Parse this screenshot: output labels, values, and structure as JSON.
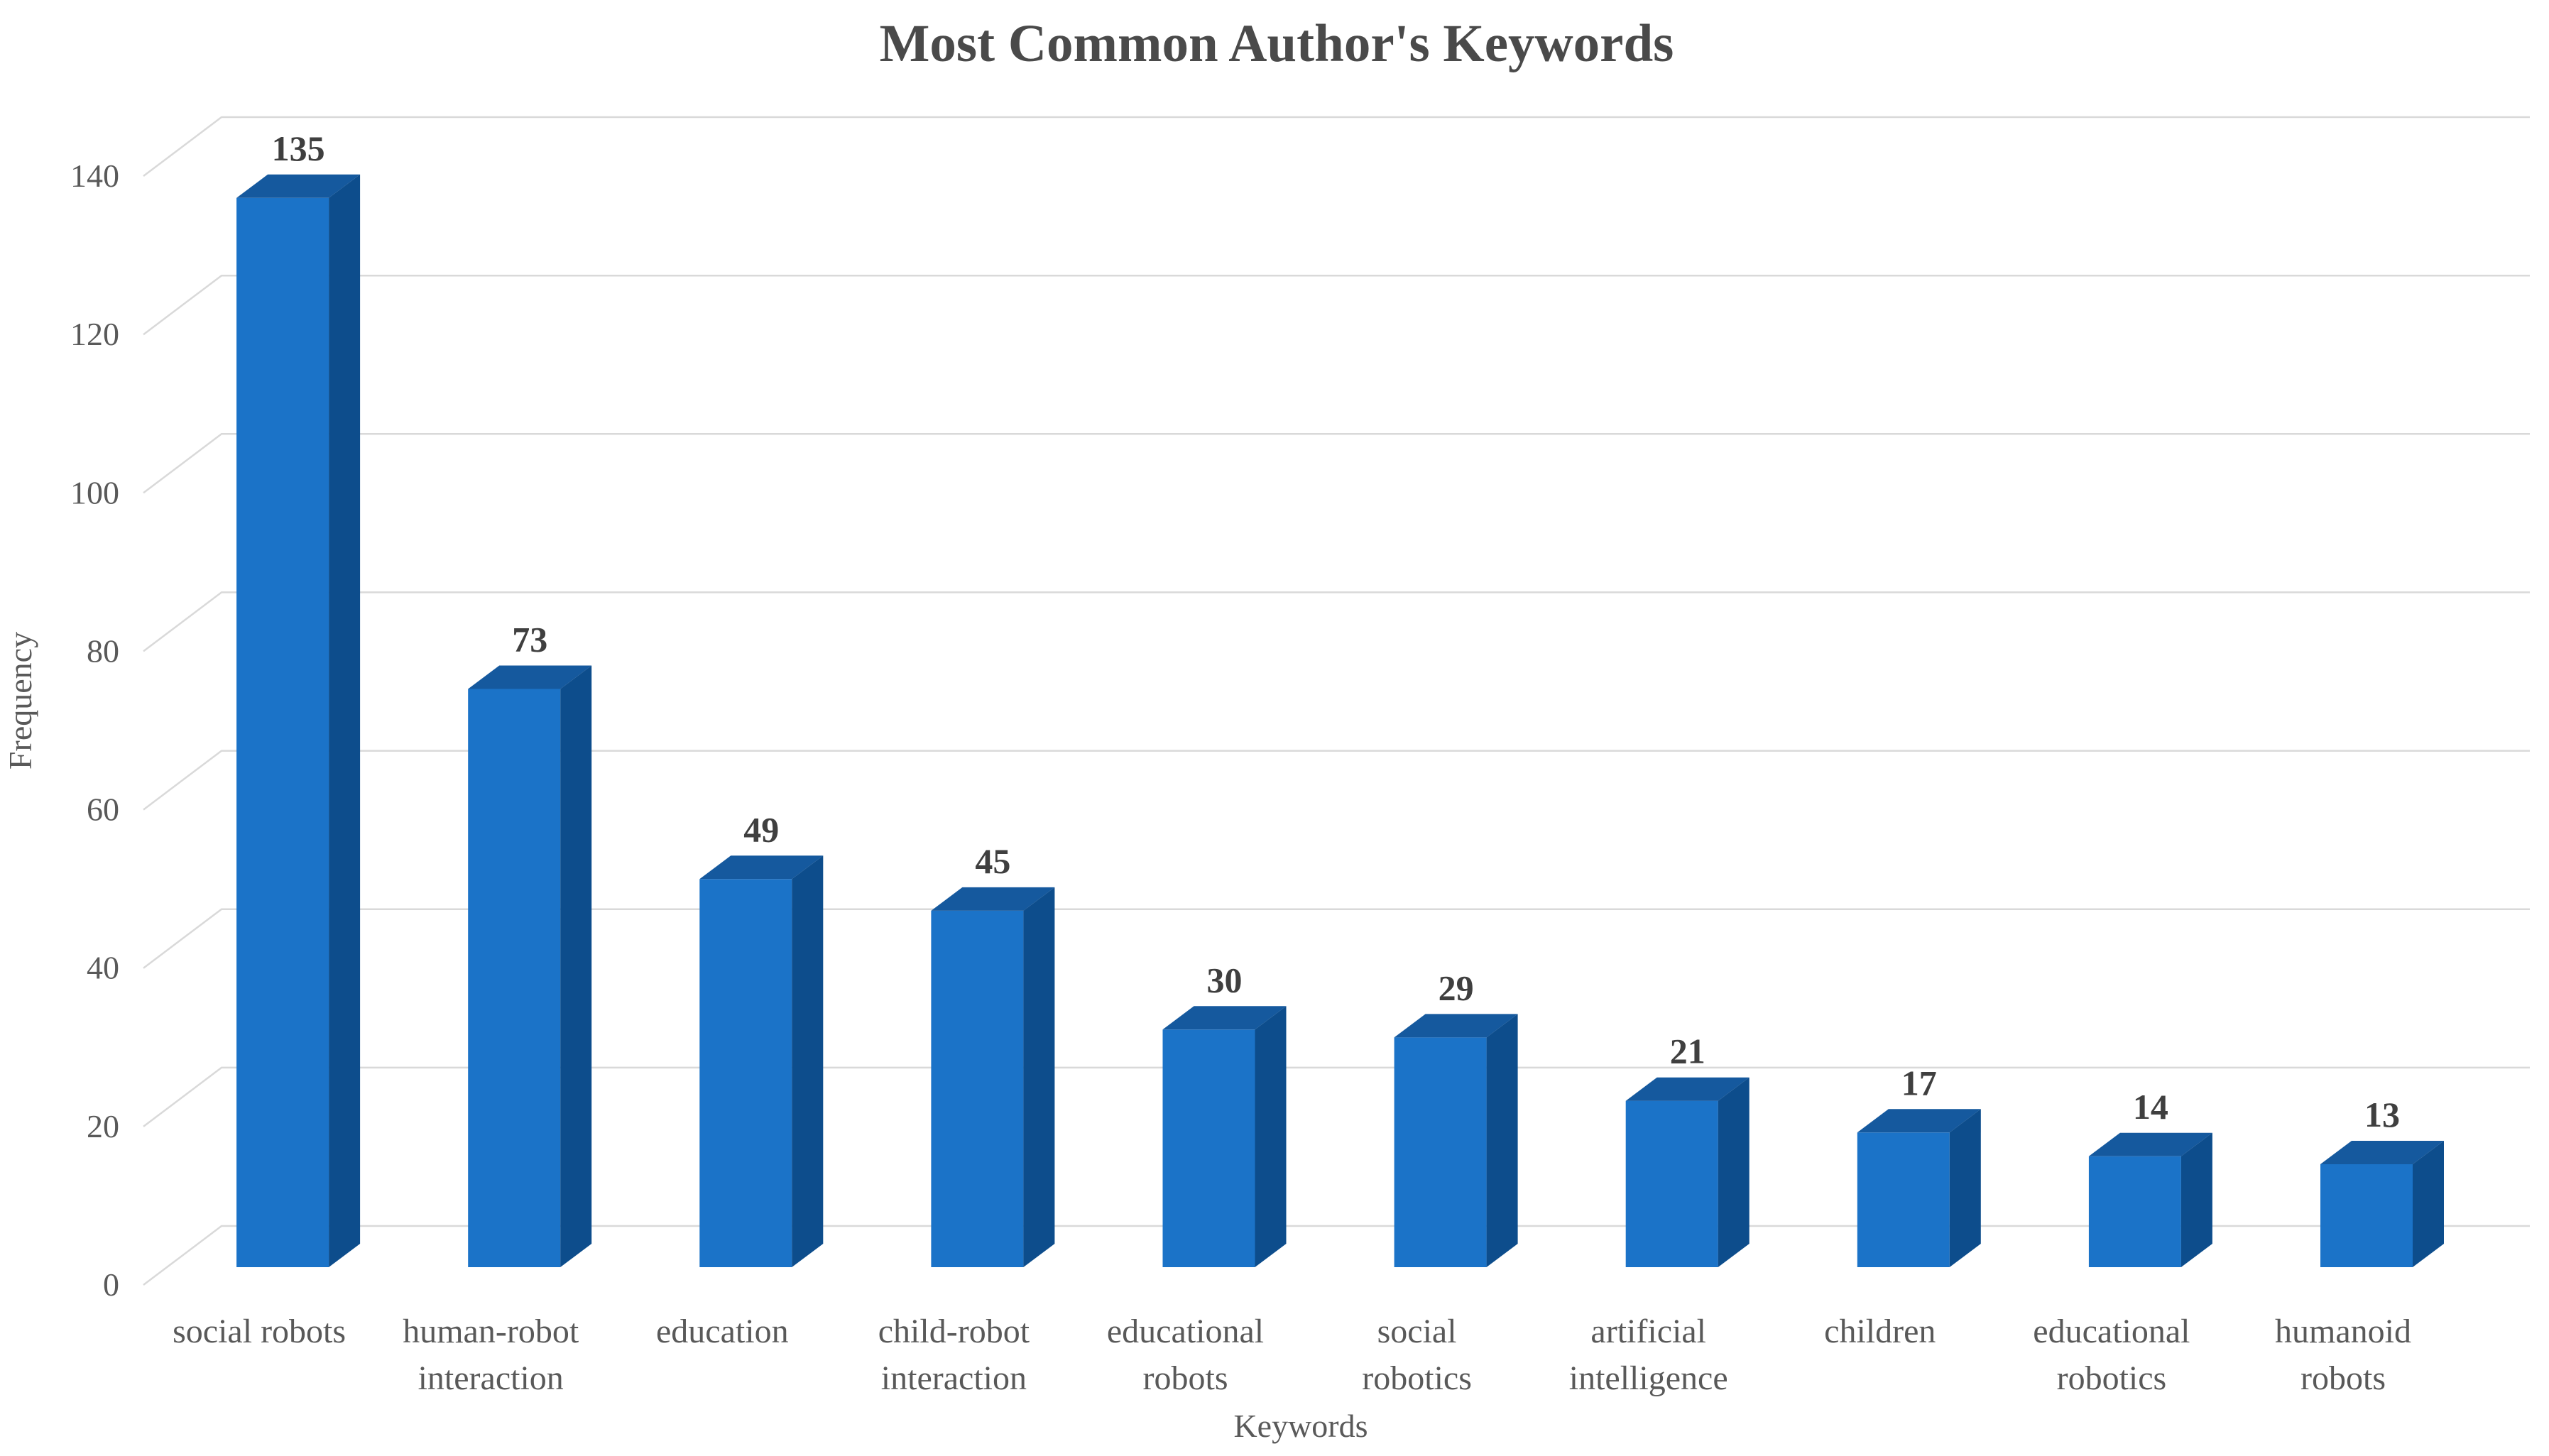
{
  "chart_data": {
    "type": "bar",
    "variant": "3d-column",
    "title": "Most Common Author's Keywords",
    "xlabel": "Keywords",
    "ylabel": "Frequency",
    "categories": [
      "social robots",
      "human-robot interaction",
      "education",
      "child-robot interaction",
      "educational robots",
      "social robotics",
      "artificial intelligence",
      "children",
      "educational robotics",
      "humanoid robots"
    ],
    "category_lines": [
      [
        "social robots"
      ],
      [
        "human-robot",
        "interaction"
      ],
      [
        "education"
      ],
      [
        "child-robot",
        "interaction"
      ],
      [
        "educational",
        "robots"
      ],
      [
        "social",
        "robotics"
      ],
      [
        "artificial",
        "intelligence"
      ],
      [
        "children"
      ],
      [
        "educational",
        "robotics"
      ],
      [
        "humanoid",
        "robots"
      ]
    ],
    "values": [
      135,
      73,
      49,
      45,
      30,
      29,
      21,
      17,
      14,
      13
    ],
    "yticks": [
      0,
      20,
      40,
      60,
      80,
      100,
      120,
      140
    ],
    "ylim": [
      0,
      140
    ],
    "grid": true,
    "legend": false,
    "colors": {
      "bar_front": "#1b73c8",
      "bar_top": "#15599e",
      "bar_side": "#0d4d8c",
      "gridline": "#d9d9d9",
      "axis_text": "#595959",
      "title_text": "#4a4a4a",
      "value_label_text": "#3f3f3f"
    },
    "background": "#ffffff"
  }
}
